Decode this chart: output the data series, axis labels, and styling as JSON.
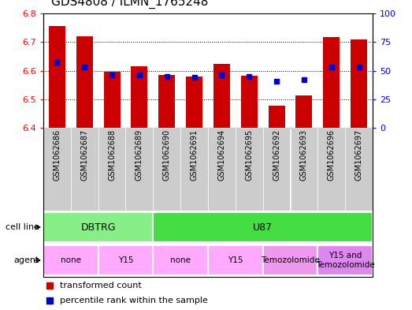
{
  "title": "GDS4808 / ILMN_1765248",
  "samples": [
    "GSM1062686",
    "GSM1062687",
    "GSM1062688",
    "GSM1062689",
    "GSM1062690",
    "GSM1062691",
    "GSM1062694",
    "GSM1062695",
    "GSM1062692",
    "GSM1062693",
    "GSM1062696",
    "GSM1062697"
  ],
  "transformed_count": [
    6.755,
    6.72,
    6.597,
    6.614,
    6.586,
    6.58,
    6.624,
    6.582,
    6.478,
    6.514,
    6.718,
    6.708
  ],
  "percentile_rank_pct": [
    57,
    53,
    46,
    46,
    45,
    44,
    46,
    45,
    41,
    42,
    53,
    53
  ],
  "y_min": 6.4,
  "y_max": 6.8,
  "y_ticks_left": [
    6.4,
    6.5,
    6.6,
    6.7,
    6.8
  ],
  "y_ticks_right": [
    0,
    25,
    50,
    75,
    100
  ],
  "bar_color": "#cc0000",
  "blue_color": "#0000cc",
  "bar_width": 0.6,
  "cell_line_groups": [
    {
      "label": "DBTRG",
      "start": 0,
      "end": 3,
      "color": "#88ee88"
    },
    {
      "label": "U87",
      "start": 4,
      "end": 11,
      "color": "#44dd44"
    }
  ],
  "agent_groups": [
    {
      "label": "none",
      "start": 0,
      "end": 1,
      "color": "#ffaaff"
    },
    {
      "label": "Y15",
      "start": 2,
      "end": 3,
      "color": "#ffaaff"
    },
    {
      "label": "none",
      "start": 4,
      "end": 5,
      "color": "#ffaaff"
    },
    {
      "label": "Y15",
      "start": 6,
      "end": 7,
      "color": "#ffaaff"
    },
    {
      "label": "Temozolomide",
      "start": 8,
      "end": 9,
      "color": "#ee99ee"
    },
    {
      "label": "Y15 and\nTemozolomide",
      "start": 10,
      "end": 11,
      "color": "#dd88ee"
    }
  ],
  "tick_bg_color": "#cccccc",
  "title_fontsize": 11
}
